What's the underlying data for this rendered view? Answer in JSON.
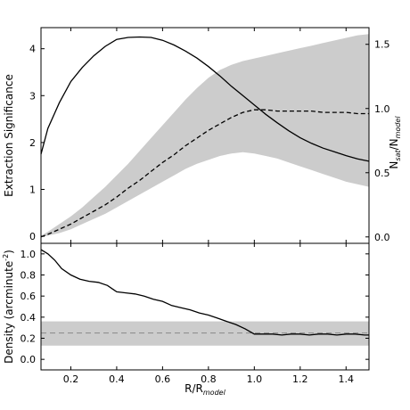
{
  "chart_data": [
    {
      "type": "line",
      "ylabel": "Extraction Significance",
      "y2label": "N_sat/N_model",
      "y2label_main": "N",
      "y2label_sub1": "sat",
      "y2label_mid": "/N",
      "y2label_sub2": "model",
      "xlim": [
        0.07,
        1.5
      ],
      "ylim": [
        -0.15,
        4.45
      ],
      "y2lim": [
        -0.05,
        1.63
      ],
      "xticks": [
        0.2,
        0.4,
        0.6,
        0.8,
        1.0,
        1.2,
        1.4
      ],
      "yticks": [
        0,
        1,
        2,
        3,
        4
      ],
      "y2ticks": [
        0.0,
        0.5,
        1.0,
        1.5
      ],
      "yticklabels": [
        "0",
        "1",
        "2",
        "3",
        "4"
      ],
      "y2ticklabels": [
        "0.0",
        "0.5",
        "1.0",
        "1.5"
      ],
      "series": [
        {
          "axis": "left",
          "style": "solid",
          "color": "#000000",
          "x": [
            0.07,
            0.1,
            0.15,
            0.2,
            0.25,
            0.3,
            0.35,
            0.4,
            0.45,
            0.5,
            0.55,
            0.6,
            0.65,
            0.7,
            0.75,
            0.8,
            0.85,
            0.9,
            0.95,
            1.0,
            1.05,
            1.1,
            1.15,
            1.2,
            1.25,
            1.3,
            1.35,
            1.4,
            1.45,
            1.5
          ],
          "y": [
            1.75,
            2.3,
            2.85,
            3.3,
            3.6,
            3.85,
            4.05,
            4.2,
            4.24,
            4.25,
            4.24,
            4.18,
            4.08,
            3.95,
            3.8,
            3.62,
            3.42,
            3.2,
            3.0,
            2.8,
            2.6,
            2.42,
            2.25,
            2.1,
            1.98,
            1.88,
            1.8,
            1.72,
            1.65,
            1.6
          ]
        },
        {
          "axis": "right",
          "style": "dashed",
          "color": "#000000",
          "x": [
            0.07,
            0.1,
            0.15,
            0.2,
            0.25,
            0.3,
            0.35,
            0.4,
            0.45,
            0.5,
            0.55,
            0.6,
            0.65,
            0.7,
            0.75,
            0.8,
            0.85,
            0.9,
            0.95,
            1.0,
            1.05,
            1.1,
            1.15,
            1.2,
            1.25,
            1.3,
            1.35,
            1.4,
            1.45,
            1.5
          ],
          "y": [
            0.0,
            0.02,
            0.06,
            0.1,
            0.15,
            0.2,
            0.25,
            0.31,
            0.38,
            0.44,
            0.51,
            0.58,
            0.64,
            0.71,
            0.77,
            0.83,
            0.88,
            0.93,
            0.97,
            0.99,
            0.99,
            0.98,
            0.98,
            0.98,
            0.98,
            0.97,
            0.97,
            0.97,
            0.96,
            0.96
          ]
        }
      ],
      "band": {
        "axis": "right",
        "color": "#cccccc",
        "x": [
          0.07,
          0.1,
          0.15,
          0.2,
          0.25,
          0.3,
          0.35,
          0.4,
          0.45,
          0.5,
          0.55,
          0.6,
          0.65,
          0.7,
          0.75,
          0.8,
          0.85,
          0.9,
          0.95,
          1.0,
          1.05,
          1.1,
          1.15,
          1.2,
          1.25,
          1.3,
          1.35,
          1.4,
          1.45,
          1.5
        ],
        "lower": [
          0.0,
          0.01,
          0.03,
          0.06,
          0.1,
          0.14,
          0.18,
          0.23,
          0.28,
          0.33,
          0.38,
          0.43,
          0.48,
          0.53,
          0.57,
          0.6,
          0.63,
          0.65,
          0.66,
          0.65,
          0.63,
          0.61,
          0.58,
          0.55,
          0.52,
          0.49,
          0.46,
          0.43,
          0.41,
          0.39
        ],
        "upper": [
          0.01,
          0.04,
          0.1,
          0.16,
          0.23,
          0.31,
          0.39,
          0.48,
          0.57,
          0.67,
          0.77,
          0.87,
          0.97,
          1.07,
          1.16,
          1.24,
          1.3,
          1.34,
          1.37,
          1.39,
          1.41,
          1.43,
          1.45,
          1.47,
          1.49,
          1.51,
          1.53,
          1.55,
          1.57,
          1.58
        ]
      }
    },
    {
      "type": "line",
      "xlabel": "R/R_model",
      "xlabel_main": "R/R",
      "xlabel_sub": "model",
      "ylabel": "Density (arcminute^-2)",
      "ylabel_main": "Density (arcminute",
      "ylabel_sup": "-2",
      "ylabel_end": ")",
      "xlim": [
        0.07,
        1.5
      ],
      "ylim": [
        -0.1,
        1.1
      ],
      "xticks": [
        0.2,
        0.4,
        0.6,
        0.8,
        1.0,
        1.2,
        1.4
      ],
      "yticks": [
        0.0,
        0.2,
        0.4,
        0.6,
        0.8,
        1.0
      ],
      "xticklabels": [
        "0.2",
        "0.4",
        "0.6",
        "0.8",
        "1.0",
        "1.2",
        "1.4"
      ],
      "yticklabels": [
        "0.0",
        "0.2",
        "0.4",
        "0.6",
        "0.8",
        "1.0"
      ],
      "series": [
        {
          "style": "solid",
          "color": "#000000",
          "x": [
            0.07,
            0.1,
            0.13,
            0.16,
            0.2,
            0.24,
            0.28,
            0.32,
            0.36,
            0.4,
            0.44,
            0.48,
            0.52,
            0.56,
            0.6,
            0.64,
            0.68,
            0.72,
            0.76,
            0.8,
            0.84,
            0.88,
            0.92,
            0.96,
            1.0,
            1.04,
            1.08,
            1.12,
            1.16,
            1.2,
            1.24,
            1.28,
            1.32,
            1.36,
            1.4,
            1.44,
            1.48,
            1.5
          ],
          "y": [
            1.04,
            1.0,
            0.94,
            0.86,
            0.8,
            0.76,
            0.74,
            0.73,
            0.7,
            0.64,
            0.63,
            0.62,
            0.6,
            0.57,
            0.55,
            0.51,
            0.49,
            0.47,
            0.44,
            0.42,
            0.39,
            0.36,
            0.33,
            0.29,
            0.24,
            0.24,
            0.24,
            0.23,
            0.24,
            0.24,
            0.23,
            0.24,
            0.24,
            0.23,
            0.24,
            0.24,
            0.23,
            0.23
          ]
        }
      ],
      "hline": {
        "y": 0.25,
        "style": "dashed",
        "color": "#888888"
      },
      "band": {
        "lower": 0.13,
        "upper": 0.36,
        "color": "#cccccc"
      }
    }
  ]
}
